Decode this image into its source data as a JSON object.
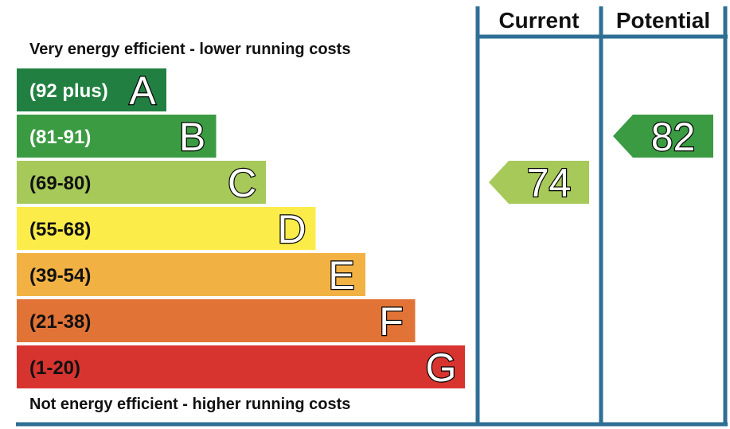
{
  "chart_data": {
    "type": "bar",
    "top_caption": "Very energy efficient - lower running costs",
    "bottom_caption": "Not energy efficient - higher running costs",
    "columns": {
      "current_label": "Current",
      "potential_label": "Potential"
    },
    "bands": [
      {
        "letter": "A",
        "range": "(92 plus)",
        "min": 92,
        "max": 100,
        "color": "#218041"
      },
      {
        "letter": "B",
        "range": "(81-91)",
        "min": 81,
        "max": 91,
        "color": "#3a9b42"
      },
      {
        "letter": "C",
        "range": "(69-80)",
        "min": 69,
        "max": 80,
        "color": "#a6c95a"
      },
      {
        "letter": "D",
        "range": "(55-68)",
        "min": 55,
        "max": 68,
        "color": "#fbec4a"
      },
      {
        "letter": "E",
        "range": "(39-54)",
        "min": 39,
        "max": 54,
        "color": "#f2b143"
      },
      {
        "letter": "F",
        "range": "(21-38)",
        "min": 21,
        "max": 38,
        "color": "#e27336"
      },
      {
        "letter": "G",
        "range": "(1-20)",
        "min": 1,
        "max": 20,
        "color": "#d7342f"
      }
    ],
    "current": {
      "value": 74,
      "band": "C",
      "color": "#a6c95a"
    },
    "potential": {
      "value": 82,
      "band": "B",
      "color": "#3a9b42"
    },
    "frame_color": "#2f6f95"
  }
}
